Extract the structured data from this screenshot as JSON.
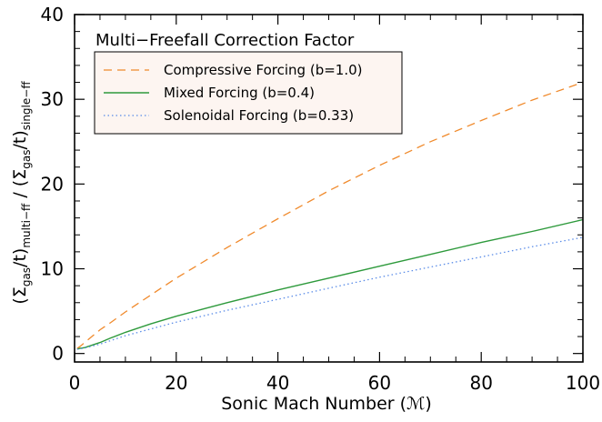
{
  "chart_data": {
    "type": "line",
    "title": "",
    "xlabel": "Sonic Mach Number (ℳ)",
    "ylabel": {
      "parts": [
        "(Σ",
        "gas",
        "/t)",
        "multi−ff",
        " / (Σ",
        "gas",
        "/t)",
        "single−ff"
      ]
    },
    "xlim": [
      0,
      100
    ],
    "ylim": [
      -1,
      40
    ],
    "xticks": [
      0,
      20,
      40,
      60,
      80,
      100
    ],
    "yticks": [
      0,
      10,
      20,
      30,
      40
    ],
    "xtick_labels": [
      "0",
      "20",
      "40",
      "60",
      "80",
      "100"
    ],
    "ytick_labels": [
      "0",
      "10",
      "20",
      "30",
      "40"
    ],
    "grid": false,
    "legend": {
      "title": "Multi−Freefall Correction Factor",
      "placement": "top-left"
    },
    "series": [
      {
        "name": "Compressive Forcing (b=1.0)",
        "color": "#f08a2c",
        "style": "dashed",
        "x": [
          0.5,
          1,
          2,
          3,
          5,
          7,
          10,
          15,
          20,
          25,
          30,
          40,
          50,
          60,
          70,
          80,
          90,
          100
        ],
        "y": [
          0.6,
          0.8,
          1.3,
          1.8,
          2.8,
          3.6,
          4.9,
          6.9,
          8.9,
          10.7,
          12.5,
          15.9,
          19.2,
          22.2,
          25.0,
          27.5,
          29.9,
          32.0
        ]
      },
      {
        "name": "Mixed Forcing (b=0.4)",
        "color": "#2e9a3c",
        "style": "solid",
        "x": [
          0.5,
          1,
          2,
          3,
          5,
          7,
          10,
          15,
          20,
          25,
          30,
          40,
          50,
          60,
          70,
          80,
          90,
          100
        ],
        "y": [
          0.5,
          0.6,
          0.7,
          0.9,
          1.3,
          1.8,
          2.5,
          3.5,
          4.4,
          5.2,
          6.0,
          7.5,
          8.9,
          10.3,
          11.7,
          13.1,
          14.4,
          15.8
        ]
      },
      {
        "name": "Solenoidal Forcing (b=0.33)",
        "color": "#5a8ce8",
        "style": "dotted",
        "x": [
          0.5,
          1,
          2,
          3,
          5,
          7,
          10,
          15,
          20,
          25,
          30,
          40,
          50,
          60,
          70,
          80,
          90,
          100
        ],
        "y": [
          0.5,
          0.55,
          0.65,
          0.8,
          1.1,
          1.5,
          2.1,
          2.9,
          3.7,
          4.4,
          5.1,
          6.4,
          7.7,
          9.0,
          10.2,
          11.4,
          12.6,
          13.7
        ]
      }
    ]
  },
  "colors": {
    "legend_background": "#fdf5f1",
    "axes": "#000000"
  }
}
